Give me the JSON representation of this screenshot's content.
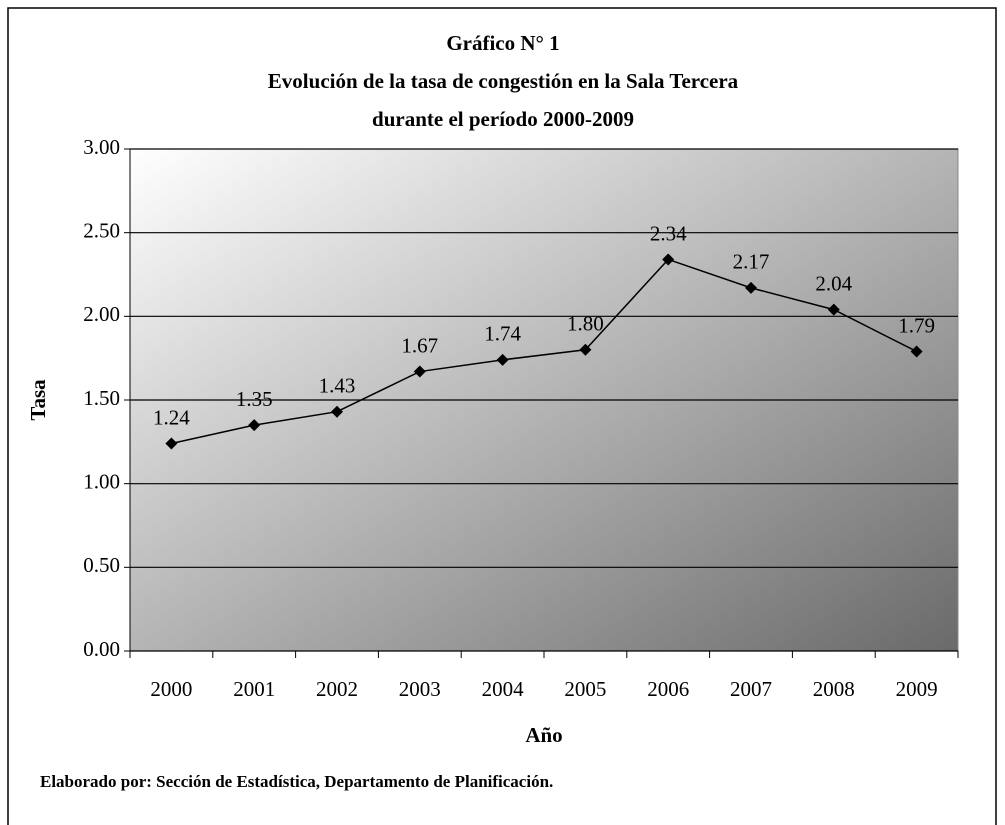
{
  "chart_data": {
    "type": "line",
    "title": [
      "Gráfico N° 1",
      "Evolución de la tasa de congestión en la Sala Tercera",
      "durante el período 2000-2009"
    ],
    "xlabel": "Año",
    "ylabel": "Tasa",
    "source": "Elaborado por: Sección de Estadística, Departamento de Planificación.",
    "categories": [
      "2000",
      "2001",
      "2002",
      "2003",
      "2004",
      "2005",
      "2006",
      "2007",
      "2008",
      "2009"
    ],
    "values": [
      1.24,
      1.35,
      1.43,
      1.67,
      1.74,
      1.8,
      2.34,
      2.17,
      2.04,
      1.79
    ],
    "value_labels": [
      "1.24",
      "1.35",
      "1.43",
      "1.67",
      "1.74",
      "1.80",
      "2.34",
      "2.17",
      "2.04",
      "1.79"
    ],
    "color": "#000000",
    "ylim": [
      0,
      3
    ],
    "yticks": [
      {
        "value": 0,
        "label": "0.00"
      },
      {
        "value": 0.5,
        "label": "0.50"
      },
      {
        "value": 1,
        "label": "1.00"
      },
      {
        "value": 1.5,
        "label": "1.50"
      },
      {
        "value": 2,
        "label": "2.00"
      },
      {
        "value": 2.5,
        "label": "2.50"
      },
      {
        "value": 3,
        "label": "3.00"
      }
    ],
    "grid": true
  }
}
